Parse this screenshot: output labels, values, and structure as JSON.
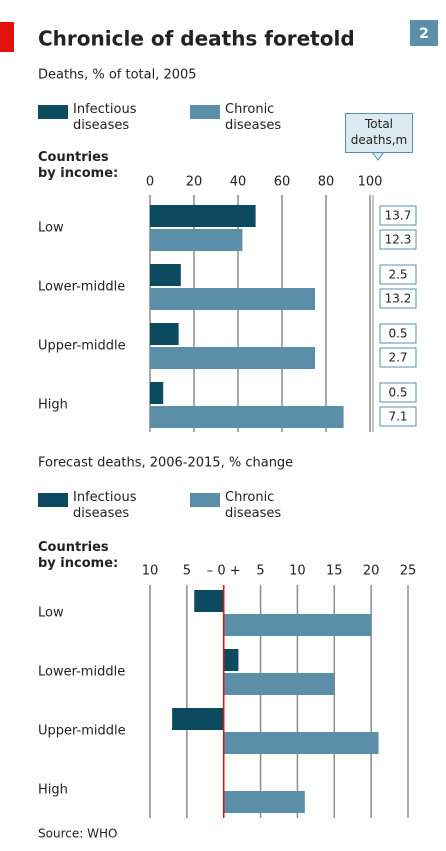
{
  "title": "Chronicle of deaths foretold",
  "badge": "2",
  "source": "Source: WHO",
  "chart_data": [
    {
      "type": "bar",
      "orientation": "horizontal",
      "subtitle": "Deaths, % of total, 2005",
      "axis_title": "Countries by income:",
      "categories": [
        "Low",
        "Lower-middle",
        "Upper-middle",
        "High"
      ],
      "series": [
        {
          "name": "Infectious diseases",
          "color": "#0c4a5f",
          "values": [
            48,
            14,
            13,
            6
          ]
        },
        {
          "name": "Chronic diseases",
          "color": "#5b8fa8",
          "values": [
            42,
            75,
            75,
            88
          ]
        }
      ],
      "xlim": [
        0,
        100
      ],
      "xticks": [
        0,
        20,
        40,
        60,
        80,
        100
      ],
      "grid": true,
      "total_deaths": {
        "title": "Total deaths,m",
        "infectious": [
          "13.7",
          "2.5",
          "0.5",
          "0.5"
        ],
        "chronic": [
          "12.3",
          "13.2",
          "2.7",
          "7.1"
        ]
      }
    },
    {
      "type": "bar",
      "orientation": "horizontal",
      "subtitle": "Forecast deaths, 2006-2015, % change",
      "axis_title": "Countries by income:",
      "categories": [
        "Low",
        "Lower-middle",
        "Upper-middle",
        "High"
      ],
      "series": [
        {
          "name": "Infectious diseases",
          "color": "#0c4a5f",
          "values": [
            -4,
            2,
            -7,
            null
          ]
        },
        {
          "name": "Chronic diseases",
          "color": "#5b8fa8",
          "values": [
            20,
            15,
            21,
            11
          ]
        }
      ],
      "xlim": [
        -10,
        25
      ],
      "xticks": [
        {
          "value": -10,
          "label": "10"
        },
        {
          "value": -5,
          "label": "5"
        },
        {
          "value": 0,
          "label": "– 0 +"
        },
        5,
        10,
        15,
        20,
        25
      ],
      "grid": true,
      "zero_line_color": "#e3120b"
    }
  ]
}
